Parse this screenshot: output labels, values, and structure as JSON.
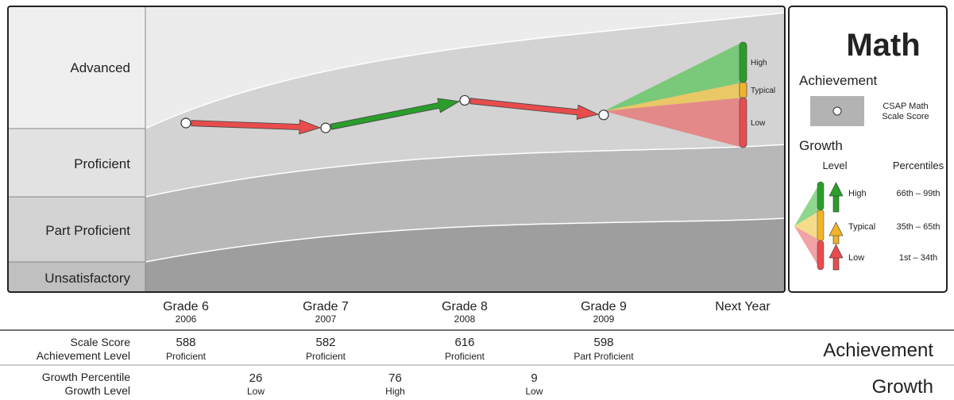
{
  "chart_data": {
    "type": "line",
    "subject": "Math",
    "bands": [
      "Advanced",
      "Proficient",
      "Part Proficient",
      "Unsatisfactory"
    ],
    "categories": [
      {
        "grade": "Grade 6",
        "year": "2006"
      },
      {
        "grade": "Grade 7",
        "year": "2007"
      },
      {
        "grade": "Grade 8",
        "year": "2008"
      },
      {
        "grade": "Grade 9",
        "year": "2009"
      },
      {
        "grade": "Next Year",
        "year": ""
      }
    ],
    "scale_scores": [
      588,
      582,
      616,
      598
    ],
    "achievement_levels": [
      "Proficient",
      "Proficient",
      "Proficient",
      "Part Proficient"
    ],
    "growth_percentiles": [
      26,
      76,
      9
    ],
    "growth_levels": [
      "Low",
      "High",
      "Low"
    ],
    "growth_colors": {
      "High": "#2a9d2a",
      "Typical": "#f0b429",
      "Low": "#e84c4c"
    },
    "projection_labels": [
      "High",
      "Typical",
      "Low"
    ]
  },
  "legend": {
    "title": "Math",
    "achievement_heading": "Achievement",
    "marker_label_line1": "CSAP Math",
    "marker_label_line2": "Scale Score",
    "growth_heading": "Growth",
    "level_header": "Level",
    "percentiles_header": "Percentiles",
    "rows": [
      {
        "level": "High",
        "range": "66th – 99th"
      },
      {
        "level": "Typical",
        "range": "35th – 65th"
      },
      {
        "level": "Low",
        "range": "1st – 34th"
      }
    ]
  },
  "table": {
    "row1_label_a": "Scale Score",
    "row1_label_b": "Achievement Level",
    "row2_label_a": "Growth Percentile",
    "row2_label_b": "Growth Level",
    "section_achievement": "Achievement",
    "section_growth": "Growth"
  }
}
